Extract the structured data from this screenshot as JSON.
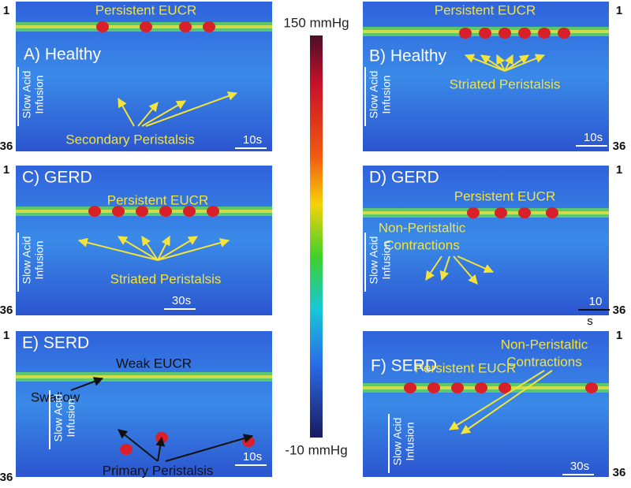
{
  "colorbar": {
    "max_label": "150 mmHg",
    "min_label": "-10 mmHg"
  },
  "panels": [
    {
      "label": "A) Healthy",
      "top_row": "1",
      "bottom_row": "36",
      "annotations": [
        "Persistent EUCR",
        "Secondary Peristalsis"
      ],
      "infusion": [
        "Slow Acid",
        "Infusion"
      ],
      "scale": [
        "10s"
      ]
    },
    {
      "label": "B) Healthy",
      "top_row": "1",
      "bottom_row": "36",
      "annotations": [
        "Persistent EUCR",
        "Striated Peristalsis"
      ],
      "infusion": [
        "Slow Acid",
        "Infusion"
      ],
      "scale": [
        "10s"
      ]
    },
    {
      "label": "C) GERD",
      "top_row": "1",
      "bottom_row": "36",
      "annotations": [
        "Persistent EUCR",
        "Striated Peristalsis"
      ],
      "infusion": [
        "Slow Acid",
        "Infusion"
      ],
      "scale": [
        "30s"
      ]
    },
    {
      "label": "D) GERD",
      "top_row": "1",
      "bottom_row": "36",
      "annotations": [
        "Persistent EUCR",
        "Non-Peristaltic",
        "Contractions"
      ],
      "infusion": [
        "Slow Acid",
        "Infusion"
      ],
      "scale": [
        "10",
        "s"
      ]
    },
    {
      "label": "E) SERD",
      "top_row": "1",
      "bottom_row": "36",
      "annotations": [
        "Weak EUCR",
        "Swallow",
        "Primary Peristalsis"
      ],
      "infusion": [
        "Slow Acid",
        "Infusion"
      ],
      "scale": [
        "10s"
      ]
    },
    {
      "label": "F) SERD",
      "top_row": "1",
      "bottom_row": "36",
      "annotations": [
        "Persistent EUCR",
        "Non-Peristaltic",
        "Contractions"
      ],
      "infusion": [
        "Slow Acid",
        "Infusion"
      ],
      "scale": [
        "30s"
      ]
    }
  ]
}
